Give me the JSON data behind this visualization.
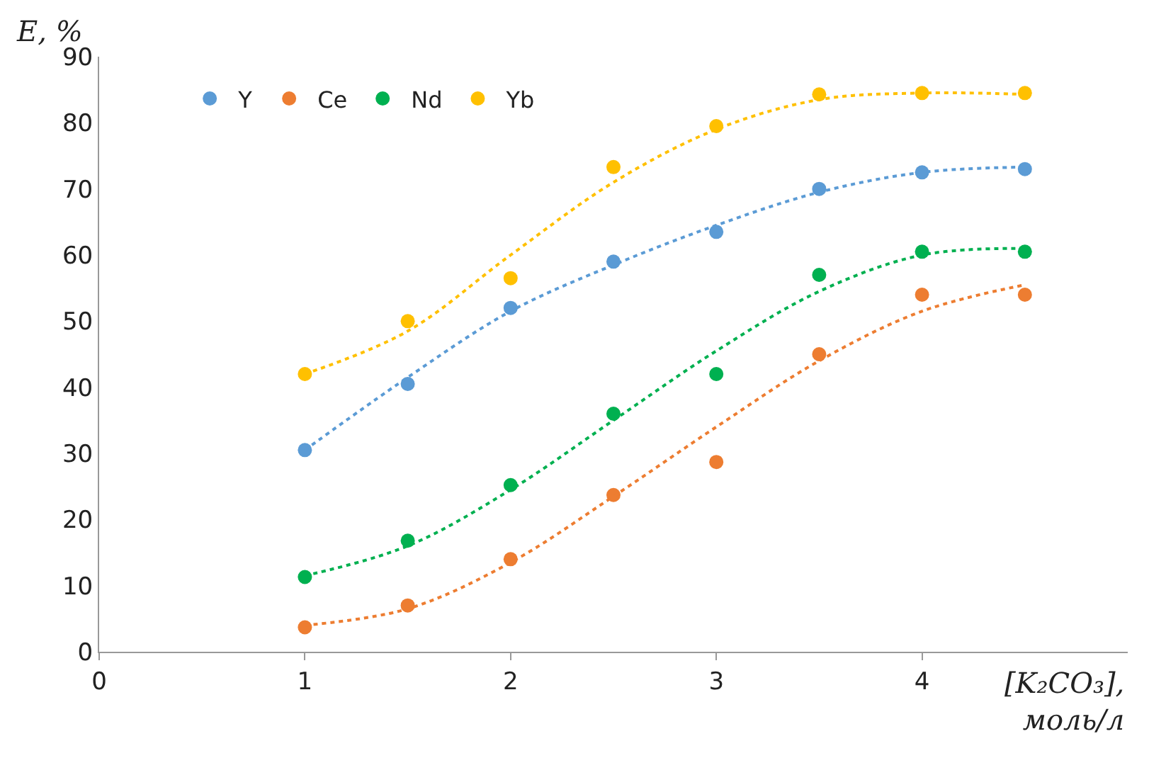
{
  "chart_data": {
    "type": "scatter",
    "xlabel": "[K₂CO₃],\nмоль/л",
    "ylabel": "E, %",
    "xlim": [
      0,
      5
    ],
    "xticks": [
      0,
      1,
      2,
      3,
      4
    ],
    "ylim": [
      0,
      90
    ],
    "yticks": [
      0,
      10,
      20,
      30,
      40,
      50,
      60,
      70,
      80,
      90
    ],
    "legend": "top left",
    "marker": "circle",
    "x": [
      1,
      1.5,
      2,
      2.5,
      3,
      3.5,
      4,
      4.5
    ],
    "series": [
      {
        "name": "Y",
        "color": "#5b9bd5",
        "values": [
          30.5,
          40.5,
          52,
          59,
          63.5,
          70,
          72.5,
          73
        ]
      },
      {
        "name": "Ce",
        "color": "#ed7d31",
        "values": [
          3.7,
          7,
          14,
          23.7,
          28.7,
          45,
          54,
          54
        ]
      },
      {
        "name": "Nd",
        "color": "#00b050",
        "values": [
          11.3,
          16.8,
          25.2,
          36,
          42,
          57,
          60.5,
          60.5
        ]
      },
      {
        "name": "Yb",
        "color": "#ffc000",
        "values": [
          42,
          50,
          56.5,
          73.3,
          79.5,
          84.3,
          84.5,
          84.5
        ]
      },
      {
        "type": "line",
        "marker": "none",
        "line_style": "dotted",
        "color": "#5b9bd5",
        "x": [
          1,
          1.5,
          2,
          2.5,
          3,
          3.5,
          4,
          4.5
        ],
        "values": [
          30.5,
          41.5,
          51.5,
          58.5,
          64.5,
          69.5,
          72.5,
          73.3
        ]
      },
      {
        "type": "line",
        "marker": "none",
        "line_style": "dotted",
        "color": "#ed7d31",
        "x": [
          1,
          1.5,
          2,
          2.5,
          3,
          3.5,
          4,
          4.5
        ],
        "values": [
          4,
          6.5,
          13.5,
          23.5,
          34,
          44,
          51.5,
          55.5
        ]
      },
      {
        "type": "line",
        "marker": "none",
        "line_style": "dotted",
        "color": "#00b050",
        "x": [
          1,
          1.5,
          2,
          2.5,
          3,
          3.5,
          4,
          4.5
        ],
        "values": [
          11.5,
          16,
          24.5,
          35,
          45.5,
          54.5,
          60,
          61
        ]
      },
      {
        "type": "line",
        "marker": "none",
        "line_style": "dotted",
        "color": "#ffc000",
        "x": [
          1,
          1.5,
          2,
          2.5,
          3,
          3.5,
          4,
          4.5
        ],
        "values": [
          42,
          48.5,
          60,
          71,
          79,
          83.5,
          84.5,
          84.3
        ]
      }
    ]
  }
}
